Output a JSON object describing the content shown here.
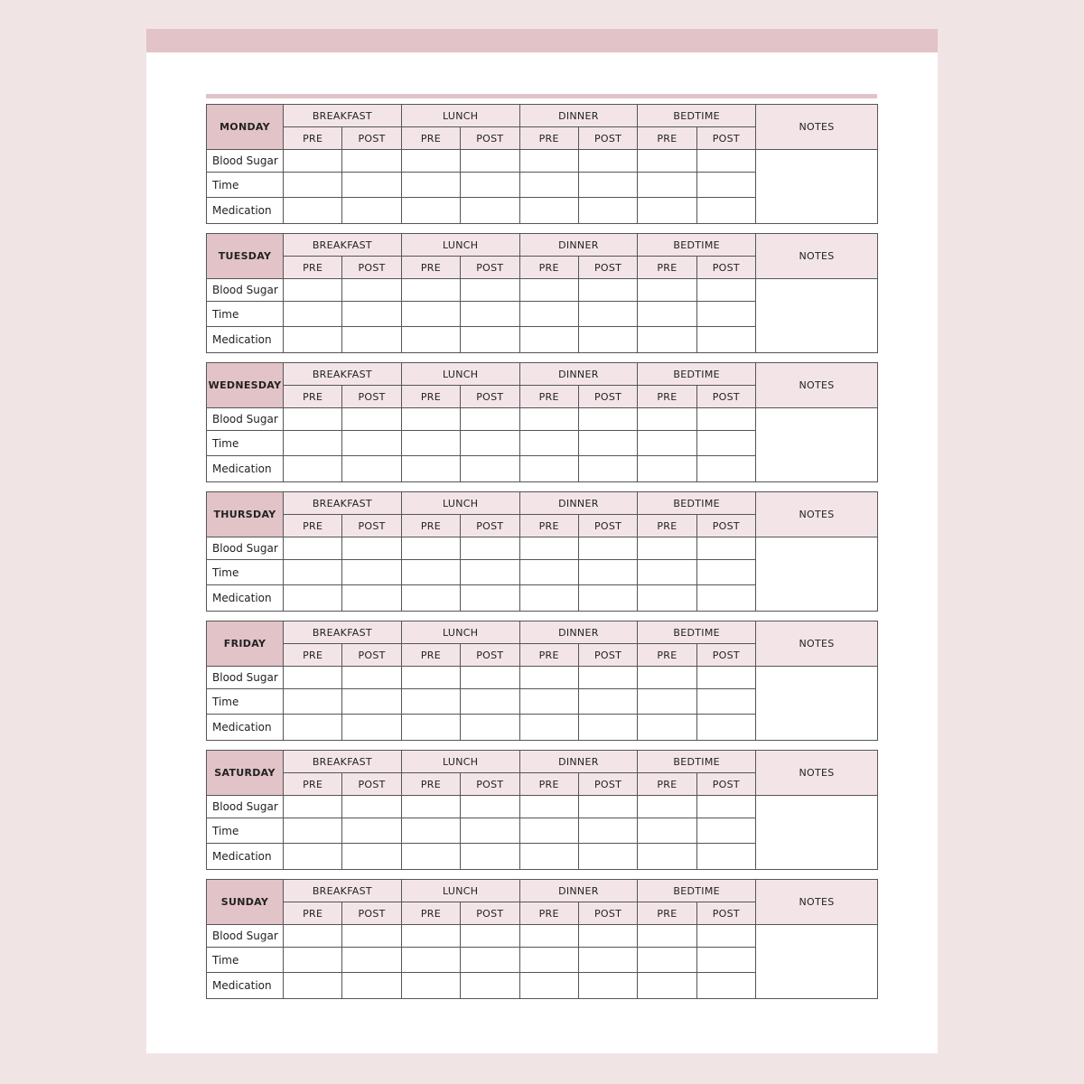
{
  "colors": {
    "background": "#f1e4e5",
    "accent": "#e2c3c7",
    "header_fill": "#f3e5e7",
    "border": "#555555"
  },
  "days": [
    "MONDAY",
    "TUESDAY",
    "WEDNESDAY",
    "THURSDAY",
    "FRIDAY",
    "SATURDAY",
    "SUNDAY"
  ],
  "meals": [
    "BREAKFAST",
    "LUNCH",
    "DINNER",
    "BEDTIME"
  ],
  "sub_columns": [
    "PRE",
    "POST"
  ],
  "notes_label": "NOTES",
  "row_labels": [
    "Blood Sugar",
    "Time",
    "Medication"
  ]
}
